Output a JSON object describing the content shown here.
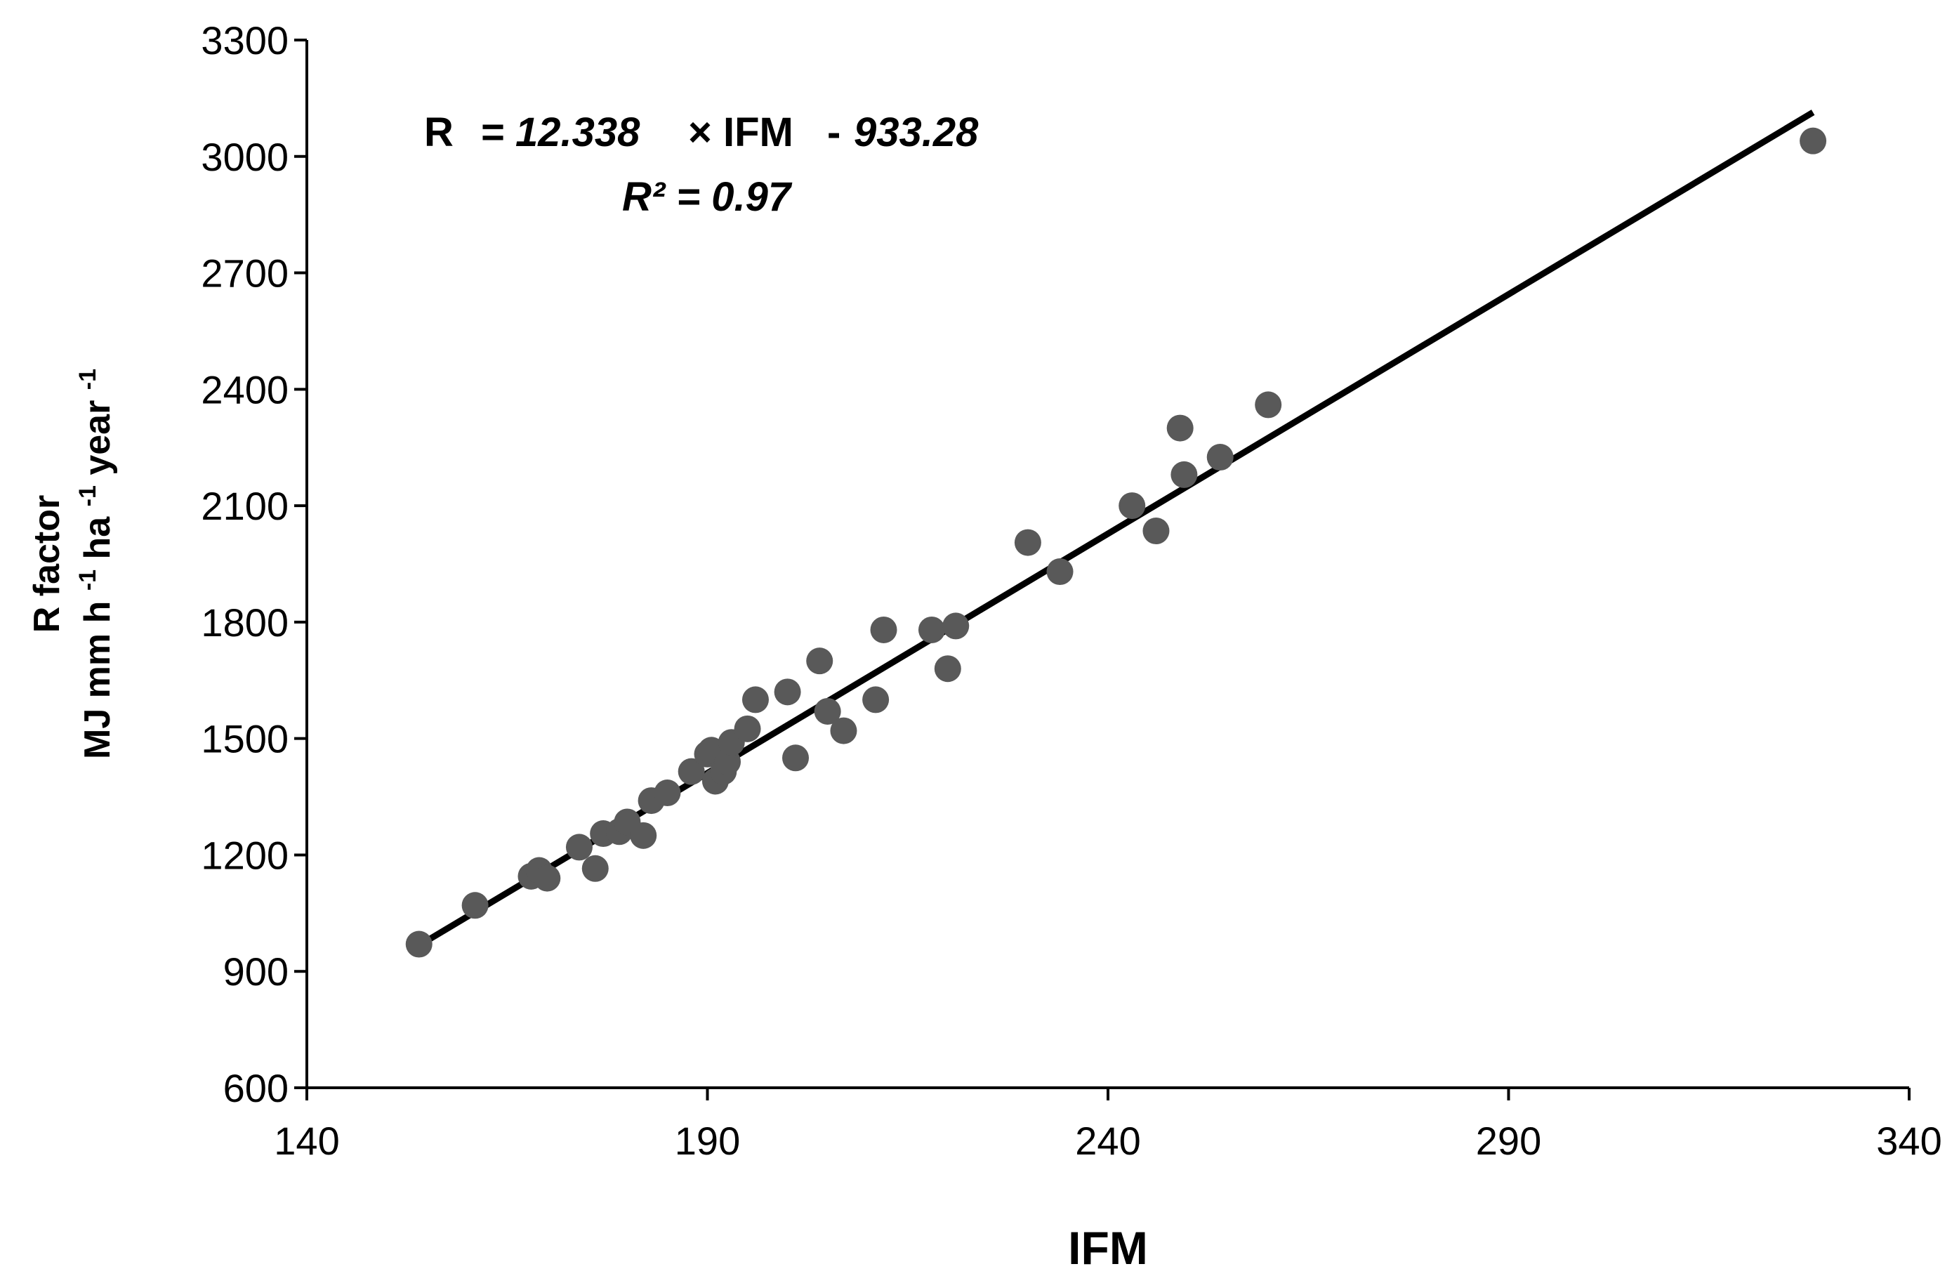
{
  "chart_data": {
    "type": "scatter",
    "xlabel": "IFM",
    "ylabel_line1": "R factor",
    "ylabel_line2": {
      "p1": "MJ mm h ",
      "s1": "-1",
      "p2": " ha ",
      "s2": "-1",
      "p3": " year ",
      "s3": "-1"
    },
    "xlim": [
      140,
      340
    ],
    "ylim": [
      600,
      3300
    ],
    "x_ticks": [
      140,
      190,
      240,
      290,
      340
    ],
    "y_ticks": [
      600,
      900,
      1200,
      1500,
      1800,
      2100,
      2400,
      2700,
      3000,
      3300
    ],
    "x_tick_labels": [
      "140",
      "190",
      "240",
      "290",
      "340"
    ],
    "y_tick_labels": [
      "600",
      "900",
      "1200",
      "1500",
      "1800",
      "2100",
      "2400",
      "2700",
      "3000",
      "3300"
    ],
    "equation": {
      "r": "R",
      "slope": "= 12.338",
      "times_ifm": "× IFM",
      "minus": "-",
      "intercept": "933.28",
      "r2_label": "R² = 0.97"
    },
    "trendline": {
      "slope": 12.338,
      "intercept": -933.28,
      "x_start": 154,
      "x_end": 328
    },
    "point_color": "#595959",
    "line_color": "#000000",
    "points": [
      [
        154,
        970
      ],
      [
        161,
        1070
      ],
      [
        168,
        1145
      ],
      [
        169,
        1160
      ],
      [
        170,
        1140
      ],
      [
        174,
        1220
      ],
      [
        176,
        1165
      ],
      [
        177,
        1255
      ],
      [
        179,
        1260
      ],
      [
        180,
        1285
      ],
      [
        182,
        1250
      ],
      [
        183,
        1340
      ],
      [
        185,
        1360
      ],
      [
        188,
        1415
      ],
      [
        190,
        1460
      ],
      [
        190.5,
        1470
      ],
      [
        191,
        1390
      ],
      [
        192,
        1415
      ],
      [
        192.5,
        1440
      ],
      [
        193,
        1490
      ],
      [
        195,
        1525
      ],
      [
        196,
        1600
      ],
      [
        200,
        1620
      ],
      [
        201,
        1450
      ],
      [
        204,
        1700
      ],
      [
        205,
        1570
      ],
      [
        207,
        1520
      ],
      [
        211,
        1600
      ],
      [
        212,
        1780
      ],
      [
        218,
        1780
      ],
      [
        220,
        1680
      ],
      [
        221,
        1790
      ],
      [
        230,
        2005
      ],
      [
        234,
        1930
      ],
      [
        243,
        2100
      ],
      [
        246,
        2035
      ],
      [
        249,
        2300
      ],
      [
        249.5,
        2180
      ],
      [
        254,
        2225
      ],
      [
        260,
        2360
      ],
      [
        328,
        3040
      ]
    ]
  }
}
